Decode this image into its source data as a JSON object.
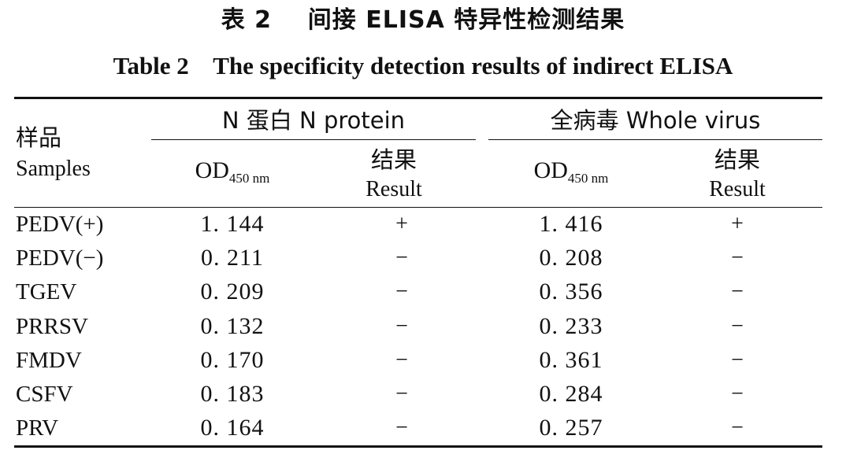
{
  "title_cn": "表 2    间接 ELISA 特异性检测结果",
  "title_en": "Table 2    The specificity detection results of indirect ELISA",
  "header": {
    "sample_cn": "样品",
    "sample_en": "Samples",
    "group1": "N 蛋白 N protein",
    "group2": "全病毒 Whole virus",
    "od_main": "OD",
    "od_sub": "450 nm",
    "result_cn": "结果",
    "result_en": "Result"
  },
  "rows": [
    {
      "sample": "PEDV(+)",
      "n_od": "1. 144",
      "n_res": "+",
      "w_od": "1. 416",
      "w_res": "+"
    },
    {
      "sample": "PEDV(−)",
      "n_od": "0. 211",
      "n_res": "−",
      "w_od": "0. 208",
      "w_res": "−"
    },
    {
      "sample": "TGEV",
      "n_od": "0. 209",
      "n_res": "−",
      "w_od": "0. 356",
      "w_res": "−"
    },
    {
      "sample": "PRRSV",
      "n_od": "0. 132",
      "n_res": "−",
      "w_od": "0. 233",
      "w_res": "−"
    },
    {
      "sample": "FMDV",
      "n_od": "0. 170",
      "n_res": "−",
      "w_od": "0. 361",
      "w_res": "−"
    },
    {
      "sample": "CSFV",
      "n_od": "0. 183",
      "n_res": "−",
      "w_od": "0. 284",
      "w_res": "−"
    },
    {
      "sample": "PRV",
      "n_od": "0. 164",
      "n_res": "−",
      "w_od": "0. 257",
      "w_res": "−"
    }
  ]
}
